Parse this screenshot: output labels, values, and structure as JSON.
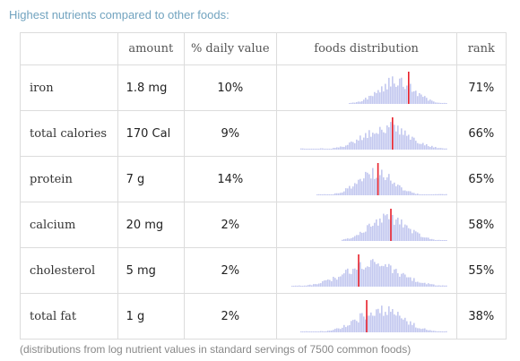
{
  "heading": "Highest nutrients compared to other foods:",
  "columns": {
    "amount": "amount",
    "daily_value": "% daily value",
    "distribution": "foods distribution",
    "rank": "rank"
  },
  "rows": [
    {
      "name": "iron",
      "amount": "1.8 mg",
      "daily_value": "10%",
      "rank": "71%",
      "center": 0.68,
      "spread": 0.11,
      "marker": 0.76,
      "start": 0.38
    },
    {
      "name": "total calories",
      "amount": "170 Cal",
      "daily_value": "9%",
      "rank": "66%",
      "center": 0.62,
      "spread": 0.14,
      "marker": 0.66,
      "start": 0.08
    },
    {
      "name": "protein",
      "amount": "7 g",
      "daily_value": "14%",
      "rank": "65%",
      "center": 0.55,
      "spread": 0.11,
      "marker": 0.57,
      "start": 0.18
    },
    {
      "name": "calcium",
      "amount": "20 mg",
      "daily_value": "2%",
      "rank": "58%",
      "center": 0.63,
      "spread": 0.12,
      "marker": 0.65,
      "start": 0.34
    },
    {
      "name": "cholesterol",
      "amount": "5 mg",
      "daily_value": "2%",
      "rank": "55%",
      "center": 0.53,
      "spread": 0.17,
      "marker": 0.45,
      "start": 0.03
    },
    {
      "name": "total fat",
      "amount": "1 g",
      "daily_value": "2%",
      "rank": "38%",
      "center": 0.58,
      "spread": 0.14,
      "marker": 0.5,
      "start": 0.08
    }
  ],
  "footnote": "(distributions from log nutrient values in standard servings of 7500 common foods)",
  "colors": {
    "bars": "#c3c8ef",
    "marker": "#e8202a",
    "heading": "#71a3bf"
  }
}
